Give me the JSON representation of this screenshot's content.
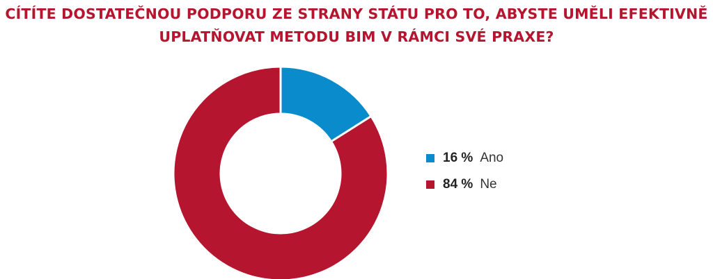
{
  "title_lines": [
    "CÍTÍTE DOSTATEČNOU PODPORU ZE STRANY STÁTU PRO TO, ABYSTE UMĚLI EFEKTIVNĚ",
    "UPLATŇOVAT METODU BIM V RÁMCI SVÉ PRAXE?"
  ],
  "colors": {
    "title": "#b5152e"
  },
  "chart_data": {
    "type": "pie",
    "donut": true,
    "title": "CÍTÍTE DOSTATEČNOU PODPORU ZE STRANY STÁTU PRO TO, ABYSTE UMĚLI EFEKTIVNĚ UPLATŇOVAT METODU BIM V RÁMCI SVÉ PRAXE?",
    "legend_position": "right",
    "categories": [
      "Ano",
      "Ne"
    ],
    "values": [
      16,
      84
    ],
    "value_labels": [
      "16 %",
      "84 %"
    ],
    "colors": [
      "#0a8bcb",
      "#b5152e"
    ]
  }
}
